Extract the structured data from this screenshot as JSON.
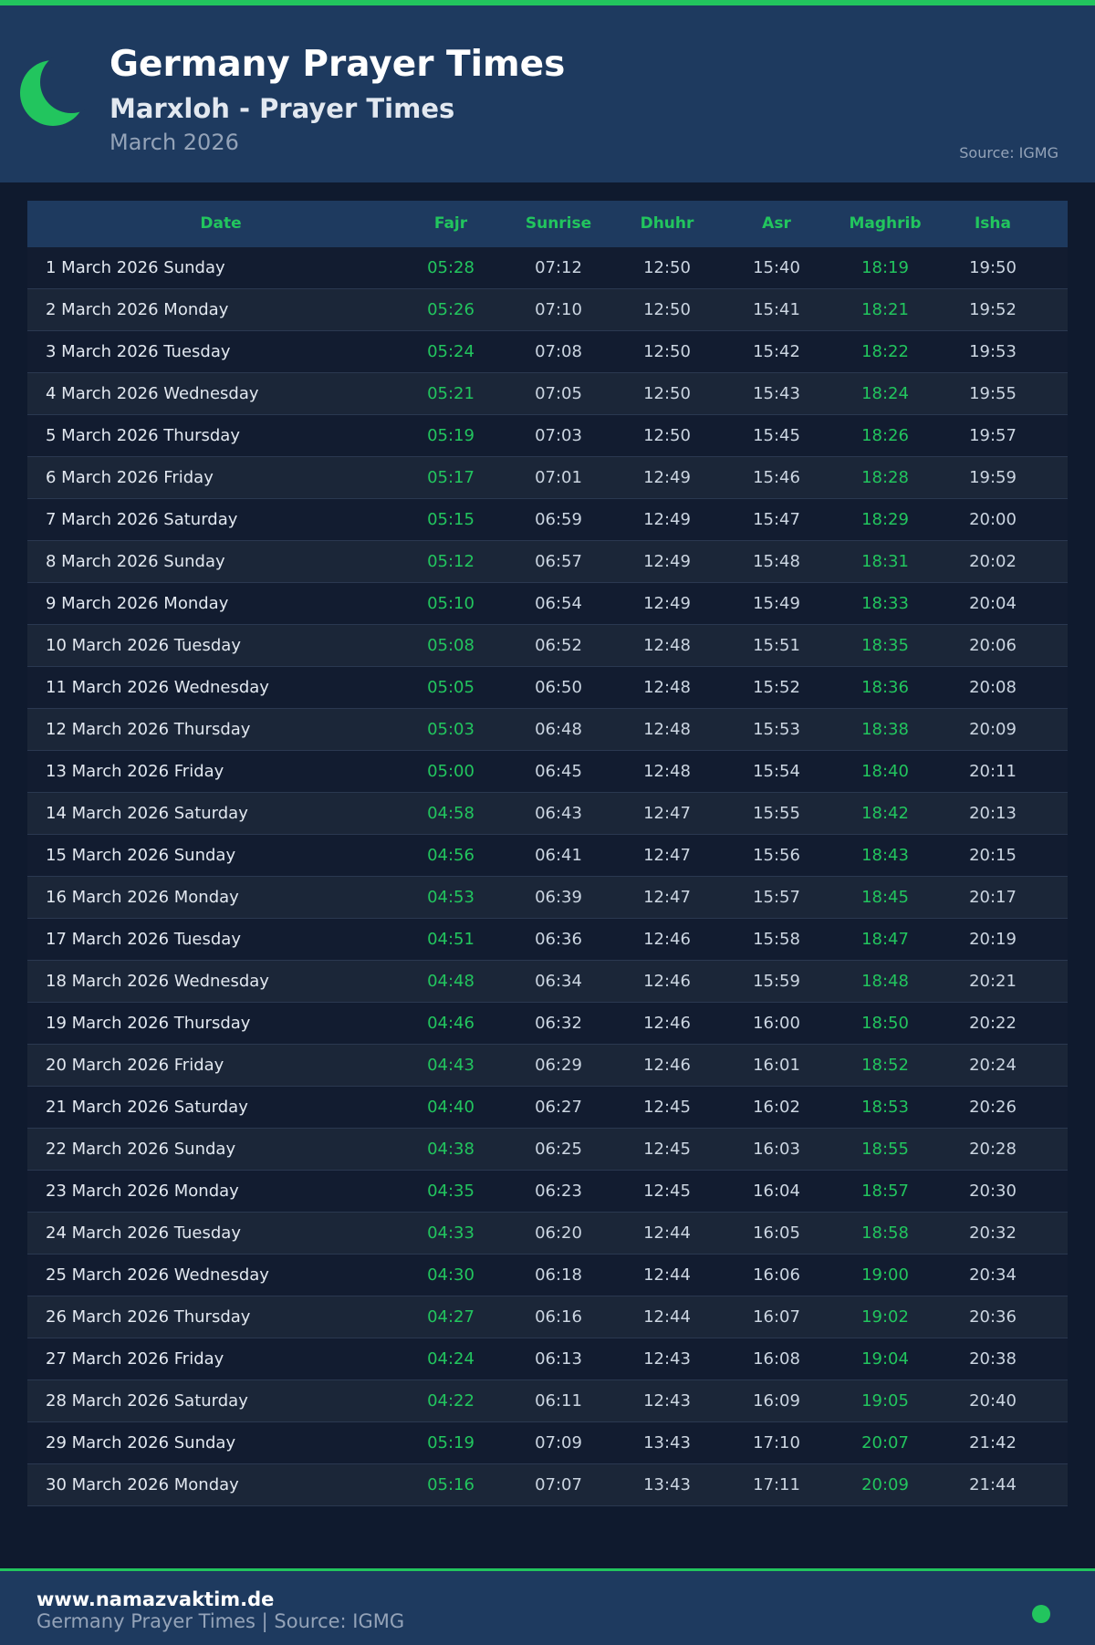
{
  "header": {
    "title": "Germany Prayer Times",
    "subtitle": "Marxloh - Prayer Times",
    "month": "March 2026",
    "source": "Source: IGMG"
  },
  "table": {
    "columns": [
      "Date",
      "Fajr",
      "Sunrise",
      "Dhuhr",
      "Asr",
      "Maghrib",
      "Isha"
    ],
    "rows": [
      [
        "1 March 2026 Sunday",
        "05:28",
        "07:12",
        "12:50",
        "15:40",
        "18:19",
        "19:50"
      ],
      [
        "2 March 2026 Monday",
        "05:26",
        "07:10",
        "12:50",
        "15:41",
        "18:21",
        "19:52"
      ],
      [
        "3 March 2026 Tuesday",
        "05:24",
        "07:08",
        "12:50",
        "15:42",
        "18:22",
        "19:53"
      ],
      [
        "4 March 2026 Wednesday",
        "05:21",
        "07:05",
        "12:50",
        "15:43",
        "18:24",
        "19:55"
      ],
      [
        "5 March 2026 Thursday",
        "05:19",
        "07:03",
        "12:50",
        "15:45",
        "18:26",
        "19:57"
      ],
      [
        "6 March 2026 Friday",
        "05:17",
        "07:01",
        "12:49",
        "15:46",
        "18:28",
        "19:59"
      ],
      [
        "7 March 2026 Saturday",
        "05:15",
        "06:59",
        "12:49",
        "15:47",
        "18:29",
        "20:00"
      ],
      [
        "8 March 2026 Sunday",
        "05:12",
        "06:57",
        "12:49",
        "15:48",
        "18:31",
        "20:02"
      ],
      [
        "9 March 2026 Monday",
        "05:10",
        "06:54",
        "12:49",
        "15:49",
        "18:33",
        "20:04"
      ],
      [
        "10 March 2026 Tuesday",
        "05:08",
        "06:52",
        "12:48",
        "15:51",
        "18:35",
        "20:06"
      ],
      [
        "11 March 2026 Wednesday",
        "05:05",
        "06:50",
        "12:48",
        "15:52",
        "18:36",
        "20:08"
      ],
      [
        "12 March 2026 Thursday",
        "05:03",
        "06:48",
        "12:48",
        "15:53",
        "18:38",
        "20:09"
      ],
      [
        "13 March 2026 Friday",
        "05:00",
        "06:45",
        "12:48",
        "15:54",
        "18:40",
        "20:11"
      ],
      [
        "14 March 2026 Saturday",
        "04:58",
        "06:43",
        "12:47",
        "15:55",
        "18:42",
        "20:13"
      ],
      [
        "15 March 2026 Sunday",
        "04:56",
        "06:41",
        "12:47",
        "15:56",
        "18:43",
        "20:15"
      ],
      [
        "16 March 2026 Monday",
        "04:53",
        "06:39",
        "12:47",
        "15:57",
        "18:45",
        "20:17"
      ],
      [
        "17 March 2026 Tuesday",
        "04:51",
        "06:36",
        "12:46",
        "15:58",
        "18:47",
        "20:19"
      ],
      [
        "18 March 2026 Wednesday",
        "04:48",
        "06:34",
        "12:46",
        "15:59",
        "18:48",
        "20:21"
      ],
      [
        "19 March 2026 Thursday",
        "04:46",
        "06:32",
        "12:46",
        "16:00",
        "18:50",
        "20:22"
      ],
      [
        "20 March 2026 Friday",
        "04:43",
        "06:29",
        "12:46",
        "16:01",
        "18:52",
        "20:24"
      ],
      [
        "21 March 2026 Saturday",
        "04:40",
        "06:27",
        "12:45",
        "16:02",
        "18:53",
        "20:26"
      ],
      [
        "22 March 2026 Sunday",
        "04:38",
        "06:25",
        "12:45",
        "16:03",
        "18:55",
        "20:28"
      ],
      [
        "23 March 2026 Monday",
        "04:35",
        "06:23",
        "12:45",
        "16:04",
        "18:57",
        "20:30"
      ],
      [
        "24 March 2026 Tuesday",
        "04:33",
        "06:20",
        "12:44",
        "16:05",
        "18:58",
        "20:32"
      ],
      [
        "25 March 2026 Wednesday",
        "04:30",
        "06:18",
        "12:44",
        "16:06",
        "19:00",
        "20:34"
      ],
      [
        "26 March 2026 Thursday",
        "04:27",
        "06:16",
        "12:44",
        "16:07",
        "19:02",
        "20:36"
      ],
      [
        "27 March 2026 Friday",
        "04:24",
        "06:13",
        "12:43",
        "16:08",
        "19:04",
        "20:38"
      ],
      [
        "28 March 2026 Saturday",
        "04:22",
        "06:11",
        "12:43",
        "16:09",
        "19:05",
        "20:40"
      ],
      [
        "29 March 2026 Sunday",
        "05:19",
        "07:09",
        "13:43",
        "17:10",
        "20:07",
        "21:42"
      ],
      [
        "30 March 2026 Monday",
        "05:16",
        "07:07",
        "13:43",
        "17:11",
        "20:09",
        "21:44"
      ]
    ]
  },
  "footer": {
    "site": "www.namazvaktim.de",
    "text": "Germany Prayer Times | Source: IGMG"
  }
}
